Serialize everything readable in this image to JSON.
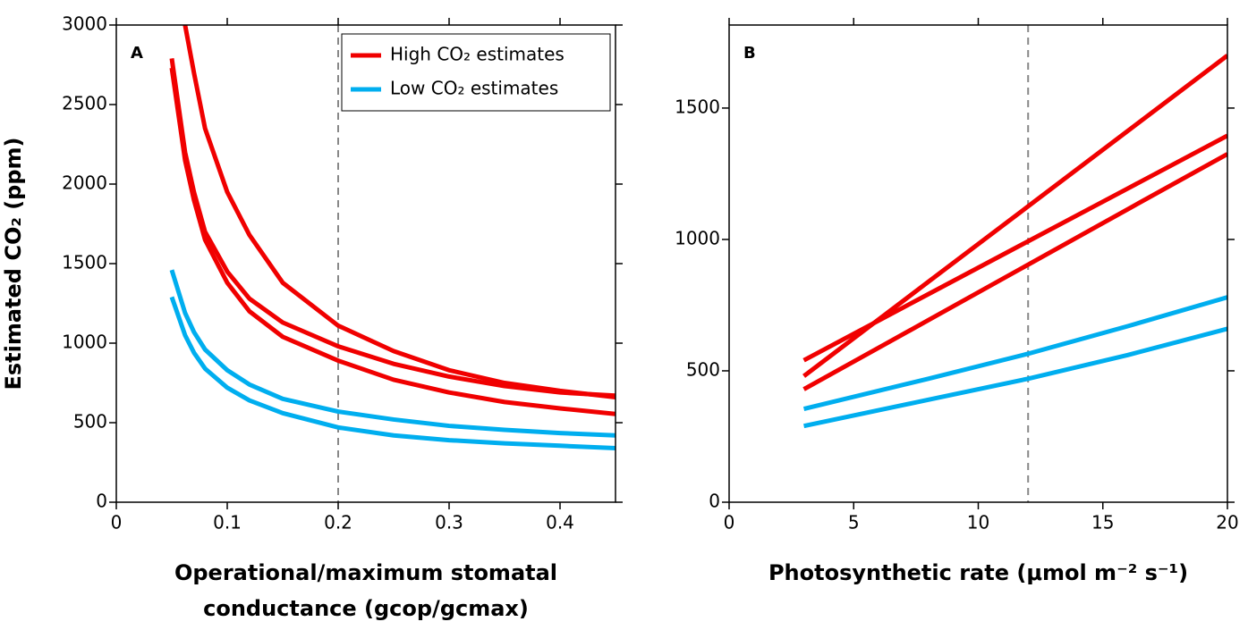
{
  "chart_data": [
    {
      "type": "line",
      "panel_label": "A",
      "ylabel": "Estimated CO₂ (ppm)",
      "xlabel": [
        "Operational/maximum stomatal",
        "conductance (gcop/gcmax)"
      ],
      "x": [
        0.05,
        0.062,
        0.07,
        0.08,
        0.1,
        0.12,
        0.15,
        0.2,
        0.25,
        0.3,
        0.35,
        0.4,
        0.45
      ],
      "series": [
        {
          "color": "#f00000",
          "values": [
            null,
            3000,
            2700,
            2350,
            1950,
            1680,
            1380,
            1110,
            950,
            830,
            750,
            700,
            660
          ]
        },
        {
          "color": "#f00000",
          "values": [
            2790,
            2200,
            1950,
            1700,
            1450,
            1280,
            1130,
            980,
            870,
            790,
            730,
            690,
            670
          ]
        },
        {
          "color": "#f00000",
          "values": [
            2730,
            2150,
            1900,
            1650,
            1380,
            1200,
            1040,
            890,
            770,
            690,
            630,
            590,
            555
          ]
        },
        {
          "color": "#00aeef",
          "values": [
            1460,
            1190,
            1070,
            960,
            830,
            740,
            650,
            570,
            520,
            480,
            455,
            435,
            420
          ]
        },
        {
          "color": "#00aeef",
          "values": [
            1290,
            1050,
            940,
            840,
            720,
            640,
            560,
            470,
            420,
            390,
            370,
            355,
            340
          ]
        }
      ],
      "legend": [
        {
          "name": "High CO₂ estimates",
          "color": "#f00000"
        },
        {
          "name": "Low CO₂ estimates",
          "color": "#00aeef"
        }
      ],
      "reference_x": 0.2,
      "xlim": [
        0,
        0.45
      ],
      "xticks": [
        0,
        0.1,
        0.2,
        0.3,
        0.4
      ],
      "ylim": [
        0,
        3000
      ],
      "yticks": [
        0,
        500,
        1000,
        1500,
        2000,
        2500,
        3000
      ]
    },
    {
      "type": "line",
      "panel_label": "B",
      "xlabel": [
        "Photosynthetic rate (μmol m⁻² s⁻¹)"
      ],
      "x": [
        3,
        8,
        12,
        16,
        20
      ],
      "series": [
        {
          "color": "#f00000",
          "values": [
            480,
            839,
            1126,
            1413,
            1700
          ]
        },
        {
          "color": "#f00000",
          "values": [
            540,
            792,
            993,
            1194,
            1395
          ]
        },
        {
          "color": "#f00000",
          "values": [
            430,
            693,
            904,
            1115,
            1325
          ]
        },
        {
          "color": "#00aeef",
          "values": [
            355,
            470,
            565,
            670,
            780
          ]
        },
        {
          "color": "#00aeef",
          "values": [
            290,
            390,
            470,
            560,
            660
          ]
        }
      ],
      "reference_x": 12,
      "xlim": [
        0,
        20
      ],
      "xticks": [
        0,
        5,
        10,
        15,
        20
      ],
      "ylim": [
        0,
        1816
      ],
      "yticks": [
        0,
        500,
        1000,
        1500
      ]
    }
  ]
}
